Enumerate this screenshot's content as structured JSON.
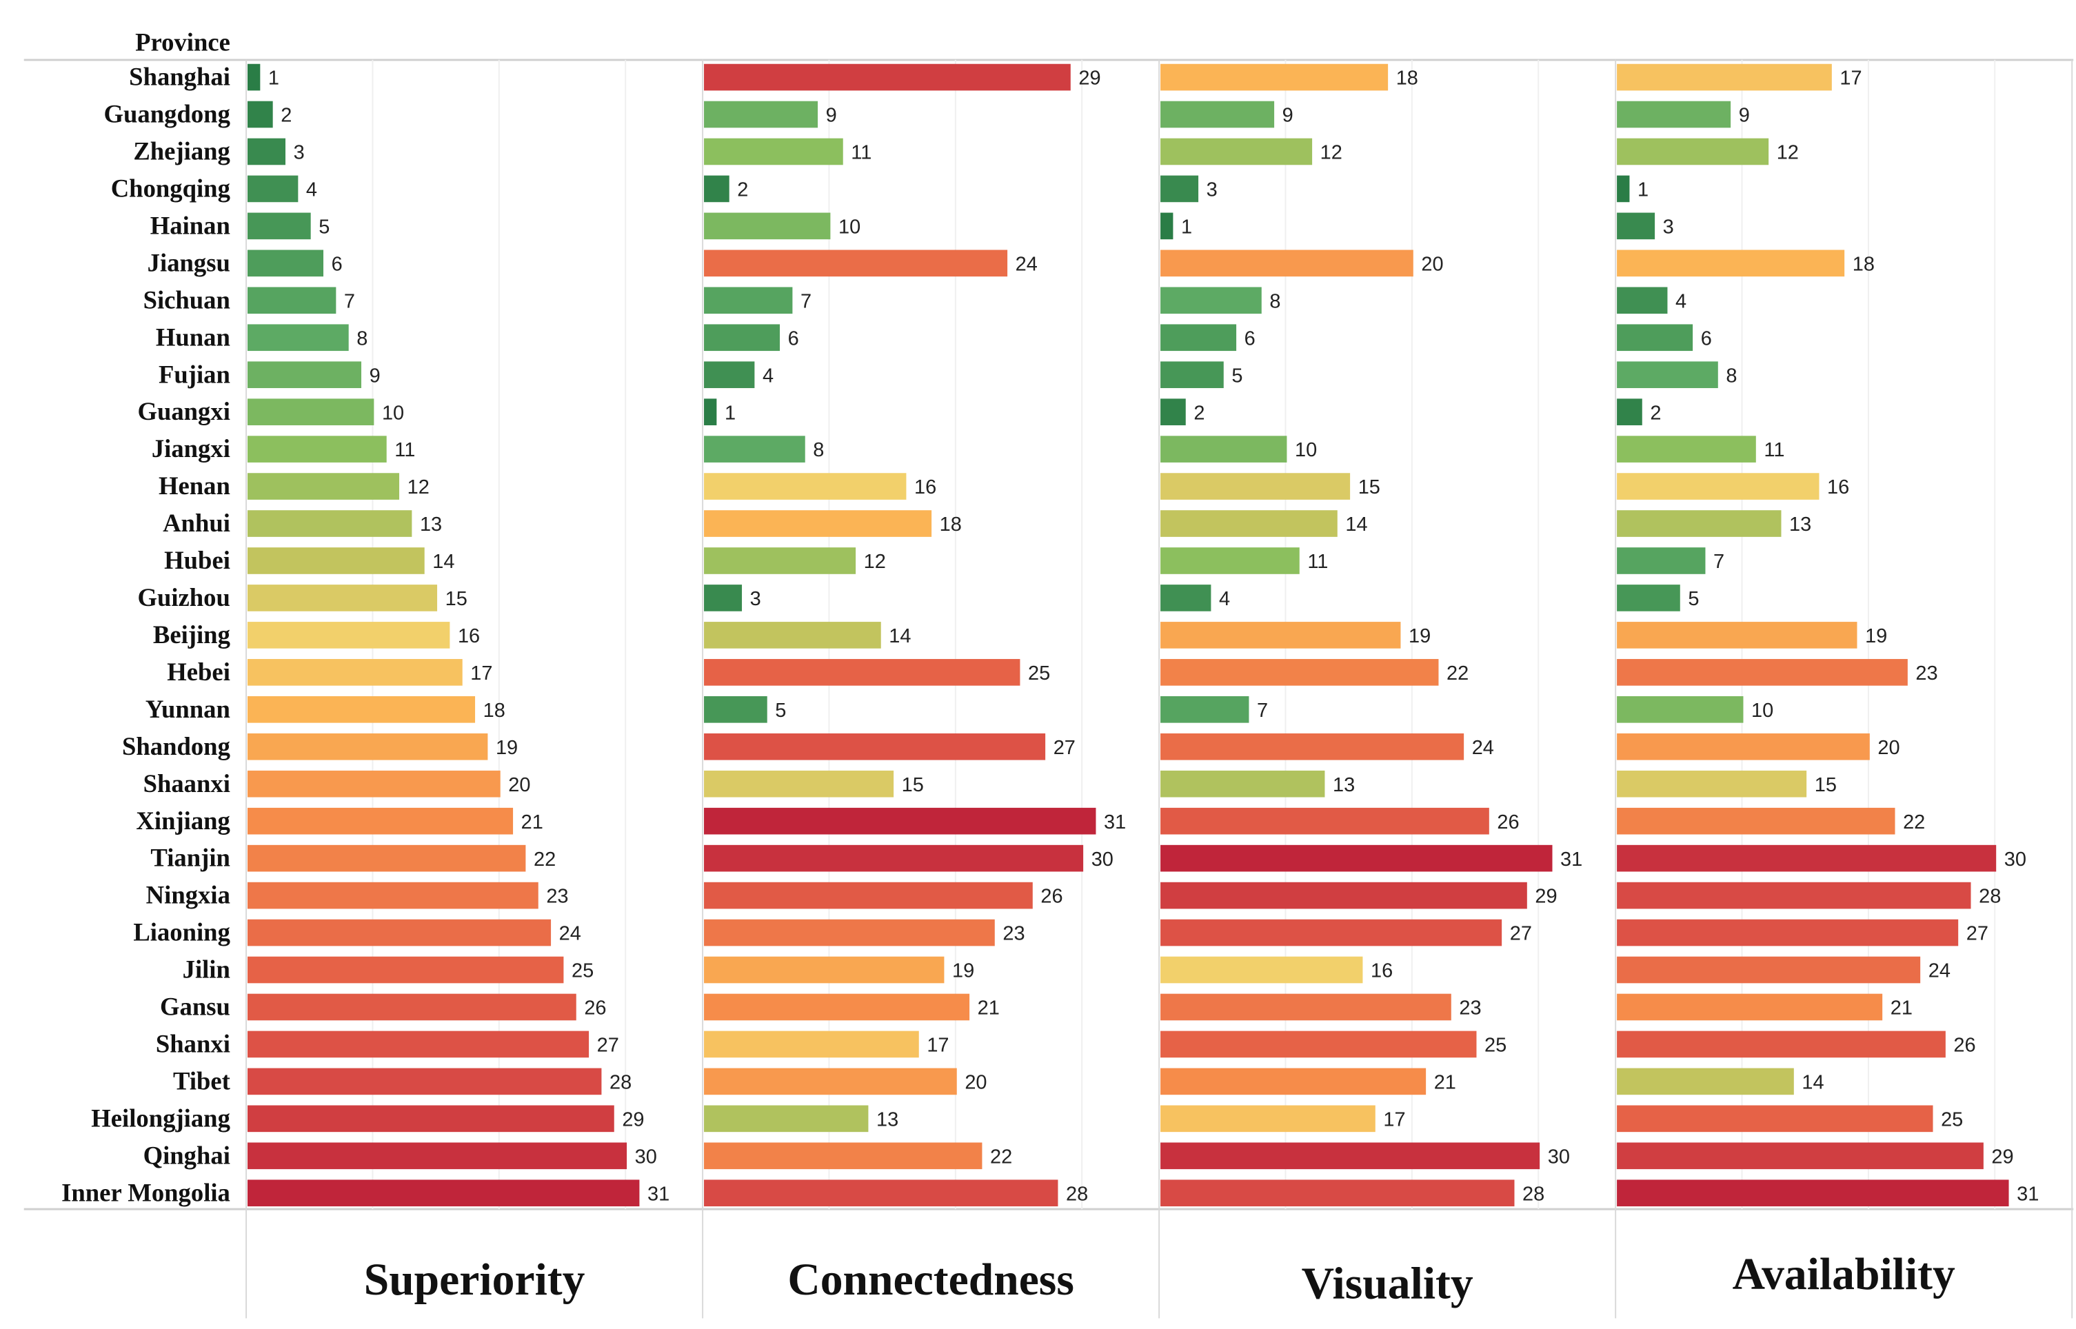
{
  "chart_data": {
    "type": "bar",
    "orientation": "horizontal",
    "row_header": "Province",
    "categories": [
      "Shanghai",
      "Guangdong",
      "Zhejiang",
      "Chongqing",
      "Hainan",
      "Jiangsu",
      "Sichuan",
      "Hunan",
      "Fujian",
      "Guangxi",
      "Jiangxi",
      "Henan",
      "Anhui",
      "Hubei",
      "Guizhou",
      "Beijing",
      "Hebei",
      "Yunnan",
      "Shandong",
      "Shaanxi",
      "Xinjiang",
      "Tianjin",
      "Ningxia",
      "Liaoning",
      "Jilin",
      "Gansu",
      "Shanxi",
      "Tibet",
      "Heilongjiang",
      "Qinghai",
      "Inner Mongolia"
    ],
    "series": [
      {
        "name": "Superiority",
        "values": [
          1,
          2,
          3,
          4,
          5,
          6,
          7,
          8,
          9,
          10,
          11,
          12,
          13,
          14,
          15,
          16,
          17,
          18,
          19,
          20,
          21,
          22,
          23,
          24,
          25,
          26,
          27,
          28,
          29,
          30,
          31
        ]
      },
      {
        "name": "Connectedness",
        "values": [
          29,
          9,
          11,
          2,
          10,
          24,
          7,
          6,
          4,
          1,
          8,
          16,
          18,
          12,
          3,
          14,
          25,
          5,
          27,
          15,
          31,
          30,
          26,
          23,
          19,
          21,
          17,
          20,
          13,
          22,
          28
        ]
      },
      {
        "name": "Visuality",
        "values": [
          18,
          9,
          12,
          3,
          1,
          20,
          8,
          6,
          5,
          2,
          10,
          15,
          14,
          11,
          4,
          19,
          22,
          7,
          24,
          13,
          26,
          31,
          29,
          27,
          16,
          23,
          25,
          21,
          17,
          30,
          28
        ]
      },
      {
        "name": "Availability",
        "values": [
          17,
          9,
          12,
          1,
          3,
          18,
          4,
          6,
          8,
          2,
          11,
          16,
          13,
          7,
          5,
          19,
          23,
          10,
          20,
          15,
          22,
          30,
          28,
          27,
          24,
          21,
          26,
          14,
          25,
          29,
          31
        ]
      }
    ],
    "xlim": [
      0,
      33
    ],
    "grid": true,
    "gridlines_at": [
      10,
      20,
      30
    ],
    "color_scale": {
      "stops": [
        1,
        8,
        11,
        14,
        16,
        18,
        21,
        25,
        28,
        31
      ],
      "colors": [
        "#2a7d46",
        "#5daa64",
        "#8cbf5e",
        "#c2c45e",
        "#f2d06b",
        "#fbb455",
        "#f68c4a",
        "#e66247",
        "#d84a45",
        "#c0253a"
      ]
    }
  }
}
